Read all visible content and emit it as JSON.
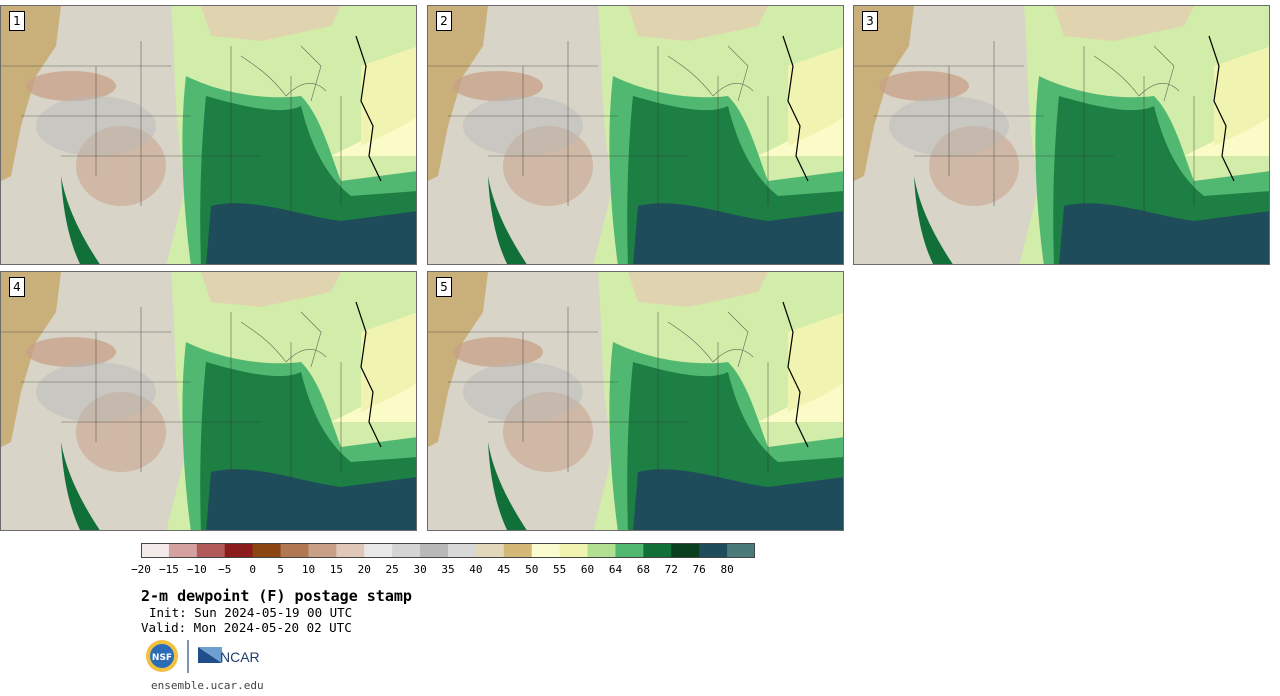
{
  "panels": [
    {
      "label": "1"
    },
    {
      "label": "2"
    },
    {
      "label": "3"
    },
    {
      "label": "4"
    },
    {
      "label": "5"
    }
  ],
  "colorbar": {
    "colors": [
      "#f4eaea",
      "#d4a0a0",
      "#b05a5a",
      "#8c1c1c",
      "#8b4513",
      "#b07850",
      "#c8a088",
      "#e0c8b8",
      "#e8e8e8",
      "#d4d4d4",
      "#b8b8b8",
      "#d8d8d8",
      "#e0d8b8",
      "#d4b878",
      "#fbfbd0",
      "#f0f4b0",
      "#b0e090",
      "#50b870",
      "#107038",
      "#0a4020",
      "#1e4c5a",
      "#4a7a7a"
    ],
    "tick_labels": [
      "−20",
      "−15",
      "−10",
      "−5",
      "0",
      "5",
      "10",
      "15",
      "20",
      "25",
      "30",
      "35",
      "40",
      "45",
      "50",
      "55",
      "60",
      "64",
      "68",
      "72",
      "76",
      "80"
    ]
  },
  "title": "2-m dewpoint (F) postage stamp",
  "init_text": "Init: Sun 2024-05-19 00 UTC",
  "valid_text": "Valid: Mon 2024-05-20 02 UTC",
  "logos": {
    "nsf": "NSF",
    "ncar": "NCAR"
  },
  "site": "ensemble.ucar.edu"
}
